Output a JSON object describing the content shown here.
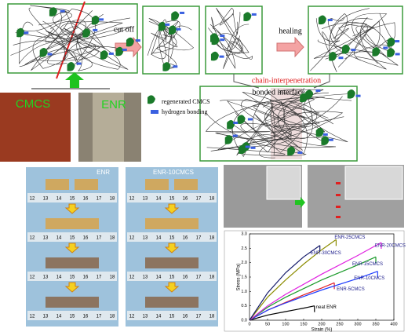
{
  "diagram": {
    "step_labels": [
      "cut off",
      "healing"
    ],
    "chain_label": "chain-interpenetration",
    "interface_label": "bonded interface",
    "source_labels": [
      "CMCS",
      "ENR"
    ],
    "legend": [
      "regenerated CMCS",
      "hydrogen bonding"
    ]
  },
  "photos": {
    "panels": [
      "ENR",
      "ENR-10CMCS"
    ],
    "ruler_numbers": [
      "12",
      "13",
      "14",
      "15",
      "16",
      "17",
      "18"
    ]
  },
  "chart_data": {
    "type": "line",
    "xlabel": "Strain (%)",
    "ylabel": "Stress (MPa)",
    "xlim": [
      0,
      400
    ],
    "ylim": [
      0,
      3.0
    ],
    "xticks": [
      0,
      50,
      100,
      150,
      200,
      250,
      300,
      350,
      400
    ],
    "yticks": [
      {
        "value": 0,
        "label": "0.0"
      },
      0.5,
      {
        "value": 1,
        "label": "1.0"
      },
      1.5,
      {
        "value": 2,
        "label": "2.0"
      },
      2.5,
      {
        "value": 3,
        "label": "3.0"
      }
    ],
    "series": [
      {
        "name": "neat ENR",
        "color": "#000000",
        "x": [
          0,
          50,
          100,
          150,
          180
        ],
        "values": [
          0,
          0.18,
          0.3,
          0.42,
          0.5
        ]
      },
      {
        "name": "ENR-5CMCS",
        "color": "#e0202a",
        "x": [
          0,
          50,
          100,
          150,
          200,
          235
        ],
        "values": [
          0,
          0.35,
          0.62,
          0.88,
          1.12,
          1.3
        ]
      },
      {
        "name": "ENR-10CMCS",
        "color": "#1e3cff",
        "x": [
          0,
          50,
          100,
          200,
          300,
          355
        ],
        "values": [
          0,
          0.35,
          0.6,
          1.05,
          1.45,
          1.7
        ]
      },
      {
        "name": "ENR-15CMCS",
        "color": "#1a9a2a",
        "x": [
          0,
          50,
          100,
          200,
          300,
          350
        ],
        "values": [
          0,
          0.45,
          0.8,
          1.4,
          1.92,
          2.2
        ]
      },
      {
        "name": "ENR-20CMCS",
        "color": "#e020e0",
        "x": [
          0,
          50,
          100,
          200,
          300,
          365
        ],
        "values": [
          0,
          0.5,
          0.9,
          1.6,
          2.25,
          2.7
        ]
      },
      {
        "name": "ENR-25CMCS",
        "color": "#8c8c00",
        "x": [
          0,
          50,
          100,
          150,
          200,
          240
        ],
        "values": [
          0,
          0.8,
          1.4,
          1.95,
          2.45,
          2.8
        ]
      },
      {
        "name": "ENR-30CMCS",
        "color": "#141a6a",
        "x": [
          0,
          50,
          100,
          150,
          195
        ],
        "values": [
          0,
          0.95,
          1.65,
          2.2,
          2.6
        ]
      }
    ]
  }
}
